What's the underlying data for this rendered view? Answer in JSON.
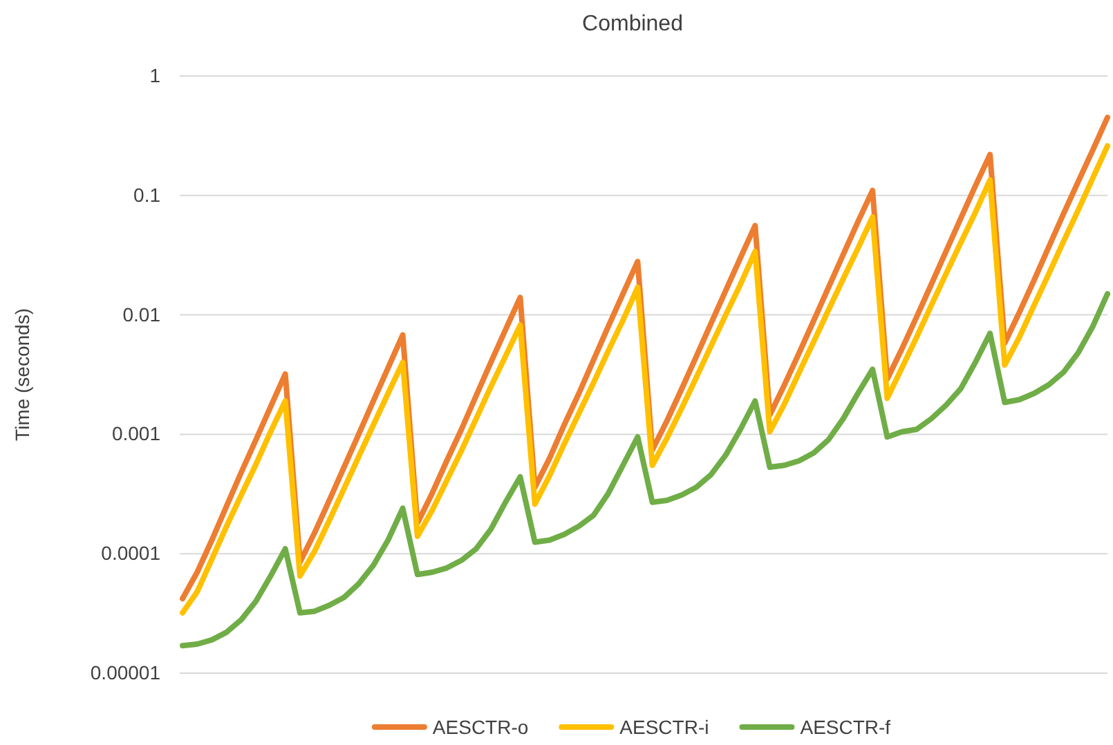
{
  "chart_data": {
    "type": "line",
    "title": "Combined",
    "ylabel": "Time (seconds)",
    "log": "y",
    "grid": "y",
    "legend": "bottom",
    "tick_labels": "y",
    "line_style": "solid",
    "marker": "none",
    "ylim": [
      1e-05,
      1
    ],
    "yticks": [
      {
        "value": 1e-05,
        "label": "0.00001"
      },
      0.0001,
      0.001,
      0.01,
      0.1,
      1
    ],
    "categories": [
      null,
      null,
      null,
      null,
      null,
      null,
      null,
      null,
      null,
      null,
      null,
      null,
      null,
      null,
      null,
      null,
      null,
      null,
      null,
      null,
      null,
      null,
      null,
      null,
      null,
      null,
      null,
      null,
      null,
      null,
      null,
      null,
      null,
      null,
      null,
      null,
      null,
      null,
      null,
      null,
      null,
      null,
      null,
      null,
      null,
      null,
      null,
      null,
      null,
      null,
      null,
      null,
      null,
      null,
      null,
      null,
      null,
      null,
      null,
      null,
      null,
      null,
      null,
      null
    ],
    "series": [
      {
        "name": "AESCTR-o",
        "color": "#ed7d31",
        "values": [
          4.2e-05,
          7e-05,
          0.00013,
          0.00025,
          0.00048,
          0.0009,
          0.0017,
          0.0032,
          8.5e-05,
          0.00015,
          0.00028,
          0.00053,
          0.001,
          0.0019,
          0.0036,
          0.0068,
          0.00018,
          0.00032,
          0.0006,
          0.0011,
          0.0021,
          0.004,
          0.0075,
          0.014,
          0.00036,
          0.00063,
          0.0012,
          0.0022,
          0.0042,
          0.008,
          0.015,
          0.028,
          0.00074,
          0.0013,
          0.0024,
          0.0045,
          0.0085,
          0.016,
          0.03,
          0.056,
          0.00145,
          0.0026,
          0.0048,
          0.009,
          0.017,
          0.032,
          0.06,
          0.11,
          0.0029,
          0.0052,
          0.0096,
          0.018,
          0.034,
          0.064,
          0.12,
          0.22,
          0.0058,
          0.0105,
          0.0195,
          0.037,
          0.07,
          0.13,
          0.24,
          0.45
        ]
      },
      {
        "name": "AESCTR-i",
        "color": "#ffc000",
        "values": [
          3.2e-05,
          4.8e-05,
          9e-05,
          0.00017,
          0.00031,
          0.00056,
          0.00105,
          0.0019,
          6.5e-05,
          0.000105,
          0.00019,
          0.00035,
          0.00065,
          0.0012,
          0.0022,
          0.004,
          0.00014,
          0.00023,
          0.00041,
          0.00073,
          0.00135,
          0.0025,
          0.0045,
          0.0082,
          0.00026,
          0.00045,
          0.00083,
          0.0015,
          0.0027,
          0.005,
          0.009,
          0.017,
          0.00055,
          0.00093,
          0.00165,
          0.003,
          0.0055,
          0.01,
          0.018,
          0.034,
          0.00105,
          0.0018,
          0.0033,
          0.006,
          0.011,
          0.02,
          0.036,
          0.066,
          0.002,
          0.0036,
          0.0065,
          0.012,
          0.022,
          0.04,
          0.072,
          0.135,
          0.0038,
          0.0065,
          0.012,
          0.022,
          0.041,
          0.075,
          0.14,
          0.26
        ]
      },
      {
        "name": "AESCTR-f",
        "color": "#70ad47",
        "values": [
          1.7e-05,
          1.75e-05,
          1.9e-05,
          2.2e-05,
          2.8e-05,
          4e-05,
          6.5e-05,
          0.00011,
          3.2e-05,
          3.3e-05,
          3.7e-05,
          4.3e-05,
          5.6e-05,
          8e-05,
          0.00013,
          0.00024,
          6.7e-05,
          7e-05,
          7.6e-05,
          8.8e-05,
          0.00011,
          0.00016,
          0.00027,
          0.00044,
          0.000125,
          0.00013,
          0.000145,
          0.00017,
          0.00021,
          0.00032,
          0.00055,
          0.00095,
          0.00027,
          0.00028,
          0.00031,
          0.00036,
          0.00046,
          0.00067,
          0.0011,
          0.0019,
          0.00053,
          0.00055,
          0.0006,
          0.0007,
          0.0009,
          0.00135,
          0.0022,
          0.0035,
          0.00095,
          0.00105,
          0.0011,
          0.00135,
          0.00175,
          0.0024,
          0.004,
          0.007,
          0.00185,
          0.00195,
          0.0022,
          0.0026,
          0.0033,
          0.0048,
          0.008,
          0.015
        ]
      }
    ]
  }
}
